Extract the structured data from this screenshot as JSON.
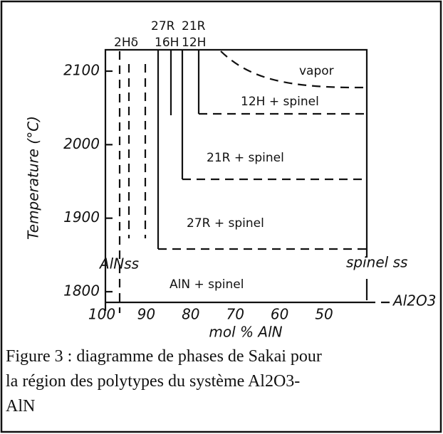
{
  "figure": {
    "top_labels": [
      "27R",
      "21R",
      "2Hδ",
      "16H",
      "12H"
    ],
    "regions": [
      "vapor",
      "12H + spinel",
      "21R + spinel",
      "27R + spinel",
      "AlN + spinel"
    ],
    "side_labels": [
      "AlNss",
      "spinel ss",
      "Al2O3"
    ],
    "y_axis": {
      "title": "Temperature (°C)",
      "ticks": [
        2100,
        2000,
        1900,
        1800
      ]
    },
    "x_axis": {
      "title": "mol % AlN",
      "ticks": [
        100,
        90,
        80,
        70,
        60,
        50
      ]
    },
    "caption": [
      "Figure 3 : diagramme de phases de Sakai pour",
      "la région des polytypes du système Al2O3-",
      "AlN"
    ]
  }
}
